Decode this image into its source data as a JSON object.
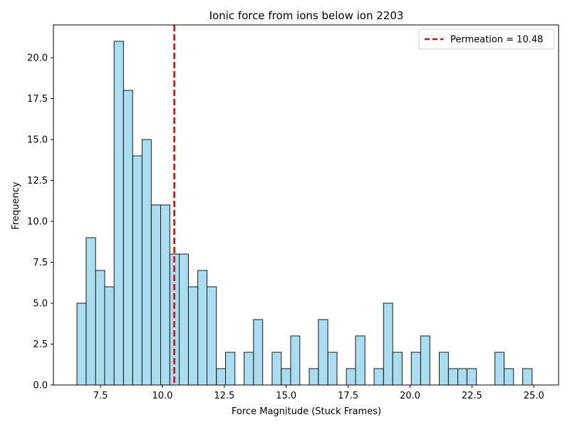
{
  "chart_data": {
    "type": "bar",
    "title": "Ionic force from ions below ion 2203",
    "xlabel": "Force Magnitude (Stuck Frames)",
    "ylabel": "Frequency",
    "xlim": [
      5.6,
      26.0
    ],
    "ylim": [
      0,
      22.0
    ],
    "x_ticks": [
      7.5,
      10.0,
      12.5,
      15.0,
      17.5,
      20.0,
      22.5,
      25.0
    ],
    "x_tick_labels": [
      "7.5",
      "10.0",
      "12.5",
      "15.0",
      "17.5",
      "20.0",
      "22.5",
      "25.0"
    ],
    "y_ticks": [
      0,
      2.5,
      5.0,
      7.5,
      10.0,
      12.5,
      15.0,
      17.5,
      20.0
    ],
    "y_tick_labels": [
      "0.0",
      "2.5",
      "5.0",
      "7.5",
      "10.0",
      "12.5",
      "15.0",
      "17.5",
      "20.0"
    ],
    "grid": false,
    "legend_position": "top-right",
    "bar_color": "#87CEEB",
    "bar_edge_color": "#1a1a1a",
    "bins": [
      {
        "x0": 6.55,
        "x1": 6.92,
        "count": 5
      },
      {
        "x0": 6.92,
        "x1": 7.3,
        "count": 9
      },
      {
        "x0": 7.3,
        "x1": 7.67,
        "count": 7
      },
      {
        "x0": 7.67,
        "x1": 8.05,
        "count": 6
      },
      {
        "x0": 8.05,
        "x1": 8.43,
        "count": 21
      },
      {
        "x0": 8.43,
        "x1": 8.8,
        "count": 18
      },
      {
        "x0": 8.8,
        "x1": 9.18,
        "count": 14
      },
      {
        "x0": 9.18,
        "x1": 9.55,
        "count": 15
      },
      {
        "x0": 9.55,
        "x1": 9.93,
        "count": 11
      },
      {
        "x0": 9.93,
        "x1": 10.3,
        "count": 11
      },
      {
        "x0": 10.3,
        "x1": 10.68,
        "count": 8
      },
      {
        "x0": 10.68,
        "x1": 11.05,
        "count": 8
      },
      {
        "x0": 11.05,
        "x1": 11.43,
        "count": 6
      },
      {
        "x0": 11.43,
        "x1": 11.8,
        "count": 7
      },
      {
        "x0": 11.8,
        "x1": 12.18,
        "count": 6
      },
      {
        "x0": 12.18,
        "x1": 12.55,
        "count": 1
      },
      {
        "x0": 12.55,
        "x1": 12.93,
        "count": 2
      },
      {
        "x0": 13.3,
        "x1": 13.68,
        "count": 2
      },
      {
        "x0": 13.68,
        "x1": 14.05,
        "count": 4
      },
      {
        "x0": 14.43,
        "x1": 14.8,
        "count": 2
      },
      {
        "x0": 14.8,
        "x1": 15.18,
        "count": 1
      },
      {
        "x0": 15.18,
        "x1": 15.55,
        "count": 3
      },
      {
        "x0": 15.93,
        "x1": 16.3,
        "count": 1
      },
      {
        "x0": 16.3,
        "x1": 16.68,
        "count": 4
      },
      {
        "x0": 16.68,
        "x1": 17.05,
        "count": 2
      },
      {
        "x0": 17.43,
        "x1": 17.8,
        "count": 1
      },
      {
        "x0": 17.8,
        "x1": 18.18,
        "count": 3
      },
      {
        "x0": 18.55,
        "x1": 18.93,
        "count": 1
      },
      {
        "x0": 18.93,
        "x1": 19.3,
        "count": 5
      },
      {
        "x0": 19.3,
        "x1": 19.68,
        "count": 2
      },
      {
        "x0": 20.05,
        "x1": 20.43,
        "count": 2
      },
      {
        "x0": 20.43,
        "x1": 20.8,
        "count": 3
      },
      {
        "x0": 21.18,
        "x1": 21.55,
        "count": 2
      },
      {
        "x0": 21.55,
        "x1": 21.93,
        "count": 1
      },
      {
        "x0": 21.93,
        "x1": 22.3,
        "count": 1
      },
      {
        "x0": 22.3,
        "x1": 22.68,
        "count": 1
      },
      {
        "x0": 23.43,
        "x1": 23.8,
        "count": 2
      },
      {
        "x0": 23.8,
        "x1": 24.18,
        "count": 1
      },
      {
        "x0": 24.55,
        "x1": 24.93,
        "count": 1
      }
    ],
    "reference_line": {
      "x": 10.48,
      "label": "Permeation = 10.48",
      "color": "#e00000",
      "style": "dashed"
    }
  }
}
